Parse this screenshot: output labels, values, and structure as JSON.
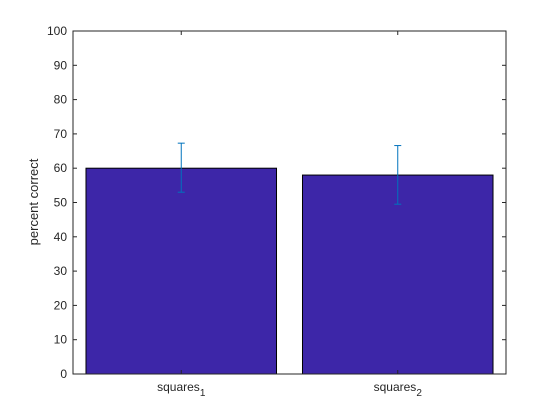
{
  "chart_data": {
    "type": "bar",
    "categories": [
      {
        "base": "squares",
        "sub": "1"
      },
      {
        "base": "squares",
        "sub": "2"
      }
    ],
    "values": [
      60,
      58
    ],
    "error_bars": [
      {
        "low": 53,
        "high": 67.3
      },
      {
        "low": 49.5,
        "high": 66.6
      }
    ],
    "ylabel": "percent correct",
    "xlabel": "",
    "title": "",
    "ylim": [
      0,
      100
    ],
    "yticks": [
      0,
      10,
      20,
      30,
      40,
      50,
      60,
      70,
      80,
      90,
      100
    ],
    "bar_color": "#3d26a8",
    "error_color": "#0072bd",
    "grid": false,
    "box": true
  }
}
